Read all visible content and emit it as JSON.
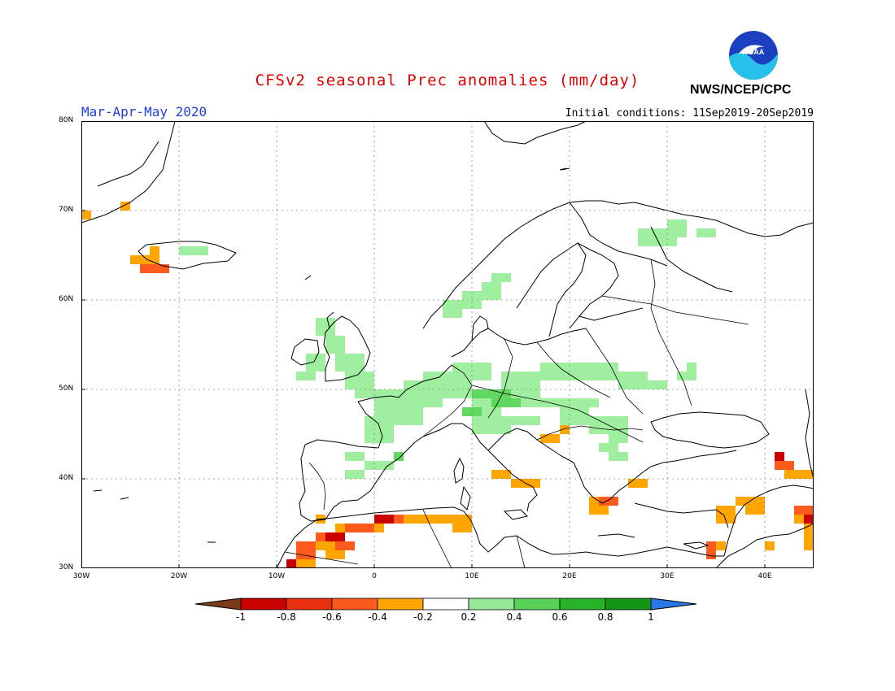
{
  "title": "CFSv2 seasonal Prec anomalies (mm/day)",
  "season": "Mar-Apr-May 2020",
  "initial_conditions": "Initial conditions: 11Sep2019-20Sep2019",
  "organization": "NWS/NCEP/CPC",
  "logo": {
    "text": "NOAA",
    "icon": "noaa-logo-icon"
  },
  "map": {
    "lat_ticks": [
      "80N",
      "70N",
      "60N",
      "50N",
      "40N",
      "30N"
    ],
    "lon_ticks": [
      "30W",
      "20W",
      "10W",
      "0",
      "10E",
      "20E",
      "30E",
      "40E"
    ],
    "lon_range": [
      -30,
      45
    ],
    "lat_range": [
      30,
      80
    ],
    "grid": true
  },
  "colorbar": {
    "labels": [
      "-1",
      "-0.8",
      "-0.6",
      "-0.4",
      "-0.2",
      "0.2",
      "0.4",
      "0.6",
      "0.8",
      "1"
    ],
    "colors": [
      "#c80000",
      "#e83010",
      "#ff5a1e",
      "#ffa500",
      "#ffffff",
      "#96e896",
      "#5ad25a",
      "#28b428",
      "#149614"
    ],
    "low_color": "#7a3b1a",
    "high_color": "#2878e8"
  },
  "anomaly_colors": {
    "light_green": "#a0eea0",
    "green": "#60d860",
    "orange": "#ffa500",
    "red_orange": "#ff5a1e",
    "red": "#c80000"
  }
}
